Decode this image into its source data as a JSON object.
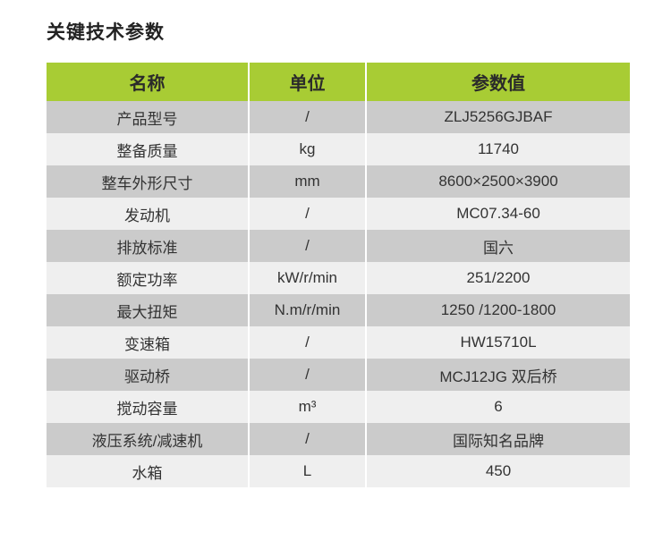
{
  "title": "关键技术参数",
  "colors": {
    "header": "#a8cc34",
    "row_dark": "#cbcbcb",
    "row_light": "#efefef"
  },
  "table": {
    "headers": [
      "名称",
      "单位",
      "参数值"
    ],
    "rows": [
      [
        "产品型号",
        "/",
        "ZLJ5256GJBAF"
      ],
      [
        "整备质量",
        "kg",
        "11740"
      ],
      [
        "整车外形尺寸",
        "mm",
        "8600×2500×3900"
      ],
      [
        "发动机",
        "/",
        "MC07.34-60"
      ],
      [
        "排放标准",
        "/",
        "国六"
      ],
      [
        "额定功率",
        "kW/r/min",
        "251/2200"
      ],
      [
        "最大扭矩",
        "N.m/r/min",
        "1250 /1200-1800"
      ],
      [
        "变速箱",
        "/",
        "HW15710L"
      ],
      [
        "驱动桥",
        "/",
        "MCJ12JG 双后桥"
      ],
      [
        "搅动容量",
        "m³",
        "6"
      ],
      [
        "液压系统/减速机",
        "/",
        "国际知名品牌"
      ],
      [
        "水箱",
        "L",
        "450"
      ]
    ]
  }
}
